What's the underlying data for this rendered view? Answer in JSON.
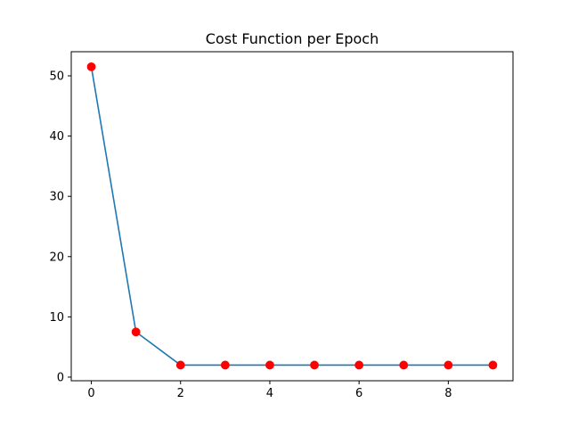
{
  "chart_data": {
    "type": "line",
    "title": "Cost Function per Epoch",
    "xlabel": "",
    "ylabel": "",
    "x": [
      0,
      1,
      2,
      3,
      4,
      5,
      6,
      7,
      8,
      9
    ],
    "series": [
      {
        "values": [
          51.5,
          7.5,
          2.0,
          2.0,
          2.0,
          2.0,
          2.0,
          2.0,
          2.0,
          2.0
        ],
        "line_color": "#1f77b4",
        "marker_color": "#ff0000",
        "marker": "circle"
      }
    ],
    "xlim": [
      -0.45,
      9.45
    ],
    "ylim": [
      -0.6,
      54.0
    ],
    "xticks": [
      0,
      2,
      4,
      6,
      8
    ],
    "yticks": [
      0,
      10,
      20,
      30,
      40,
      50
    ],
    "grid": false,
    "legend": "none"
  }
}
